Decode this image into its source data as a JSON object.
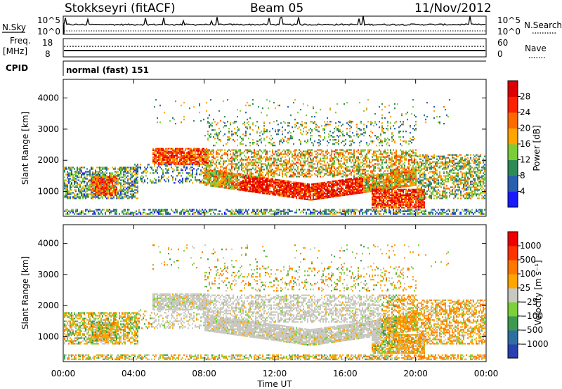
{
  "header": {
    "station": "Stokkseyri (fitACF)",
    "beam": "Beam 05",
    "date": "11/Nov/2012"
  },
  "top_panels": {
    "nsky_label": "N.Sky",
    "nsky_ticks": [
      "10^5",
      "10^0"
    ],
    "nsearch_label": "N.Search",
    "nsearch_ticks": [
      "10^5",
      "10^0"
    ],
    "freq_label_1": "Freq.",
    "freq_label_2": "[MHz]",
    "freq_ticks": [
      "18",
      "8"
    ],
    "nave_label": "Nave",
    "nave_ticks": [
      "60",
      "0"
    ],
    "cpid_label": "CPID",
    "cpid_value": "normal (fast) 151"
  },
  "x_axis": {
    "label": "Time UT",
    "ticks": [
      "00:00",
      "04:00",
      "08:00",
      "12:00",
      "16:00",
      "20:00",
      "00:00"
    ]
  },
  "chart_data": [
    {
      "type": "heatmap",
      "panel": "power",
      "ylabel": "Slant Range [km]",
      "yticks": [
        1000,
        2000,
        3000,
        4000
      ],
      "ylim": [
        200,
        4600
      ],
      "xlim_hours": [
        0,
        24
      ],
      "colorbar": {
        "label": "Power [dB]",
        "ticks": [
          "4",
          "8",
          "12",
          "16",
          "20",
          "24",
          "28"
        ],
        "colors": [
          "#1a1aff",
          "#2a5fb0",
          "#2e8b57",
          "#7ccd3a",
          "#ffa500",
          "#ff6a00",
          "#ff2200",
          "#dd0000"
        ]
      }
    },
    {
      "type": "heatmap",
      "panel": "velocity",
      "ylabel": "Slant Range [km]",
      "yticks": [
        1000,
        2000,
        3000,
        4000
      ],
      "ylim": [
        200,
        4600
      ],
      "xlim_hours": [
        0,
        24
      ],
      "colorbar": {
        "label": "Velocity [m s⁻¹]",
        "ticks": [
          "1000",
          "500",
          "100",
          "25",
          "−25",
          "−100",
          "−500",
          "−1000"
        ],
        "colors": [
          "#2a3fb0",
          "#2e6fa0",
          "#3c9a50",
          "#7cd03a",
          "#c8c8c0",
          "#ffa500",
          "#ff7700",
          "#ff3300",
          "#ee0000"
        ]
      }
    }
  ]
}
